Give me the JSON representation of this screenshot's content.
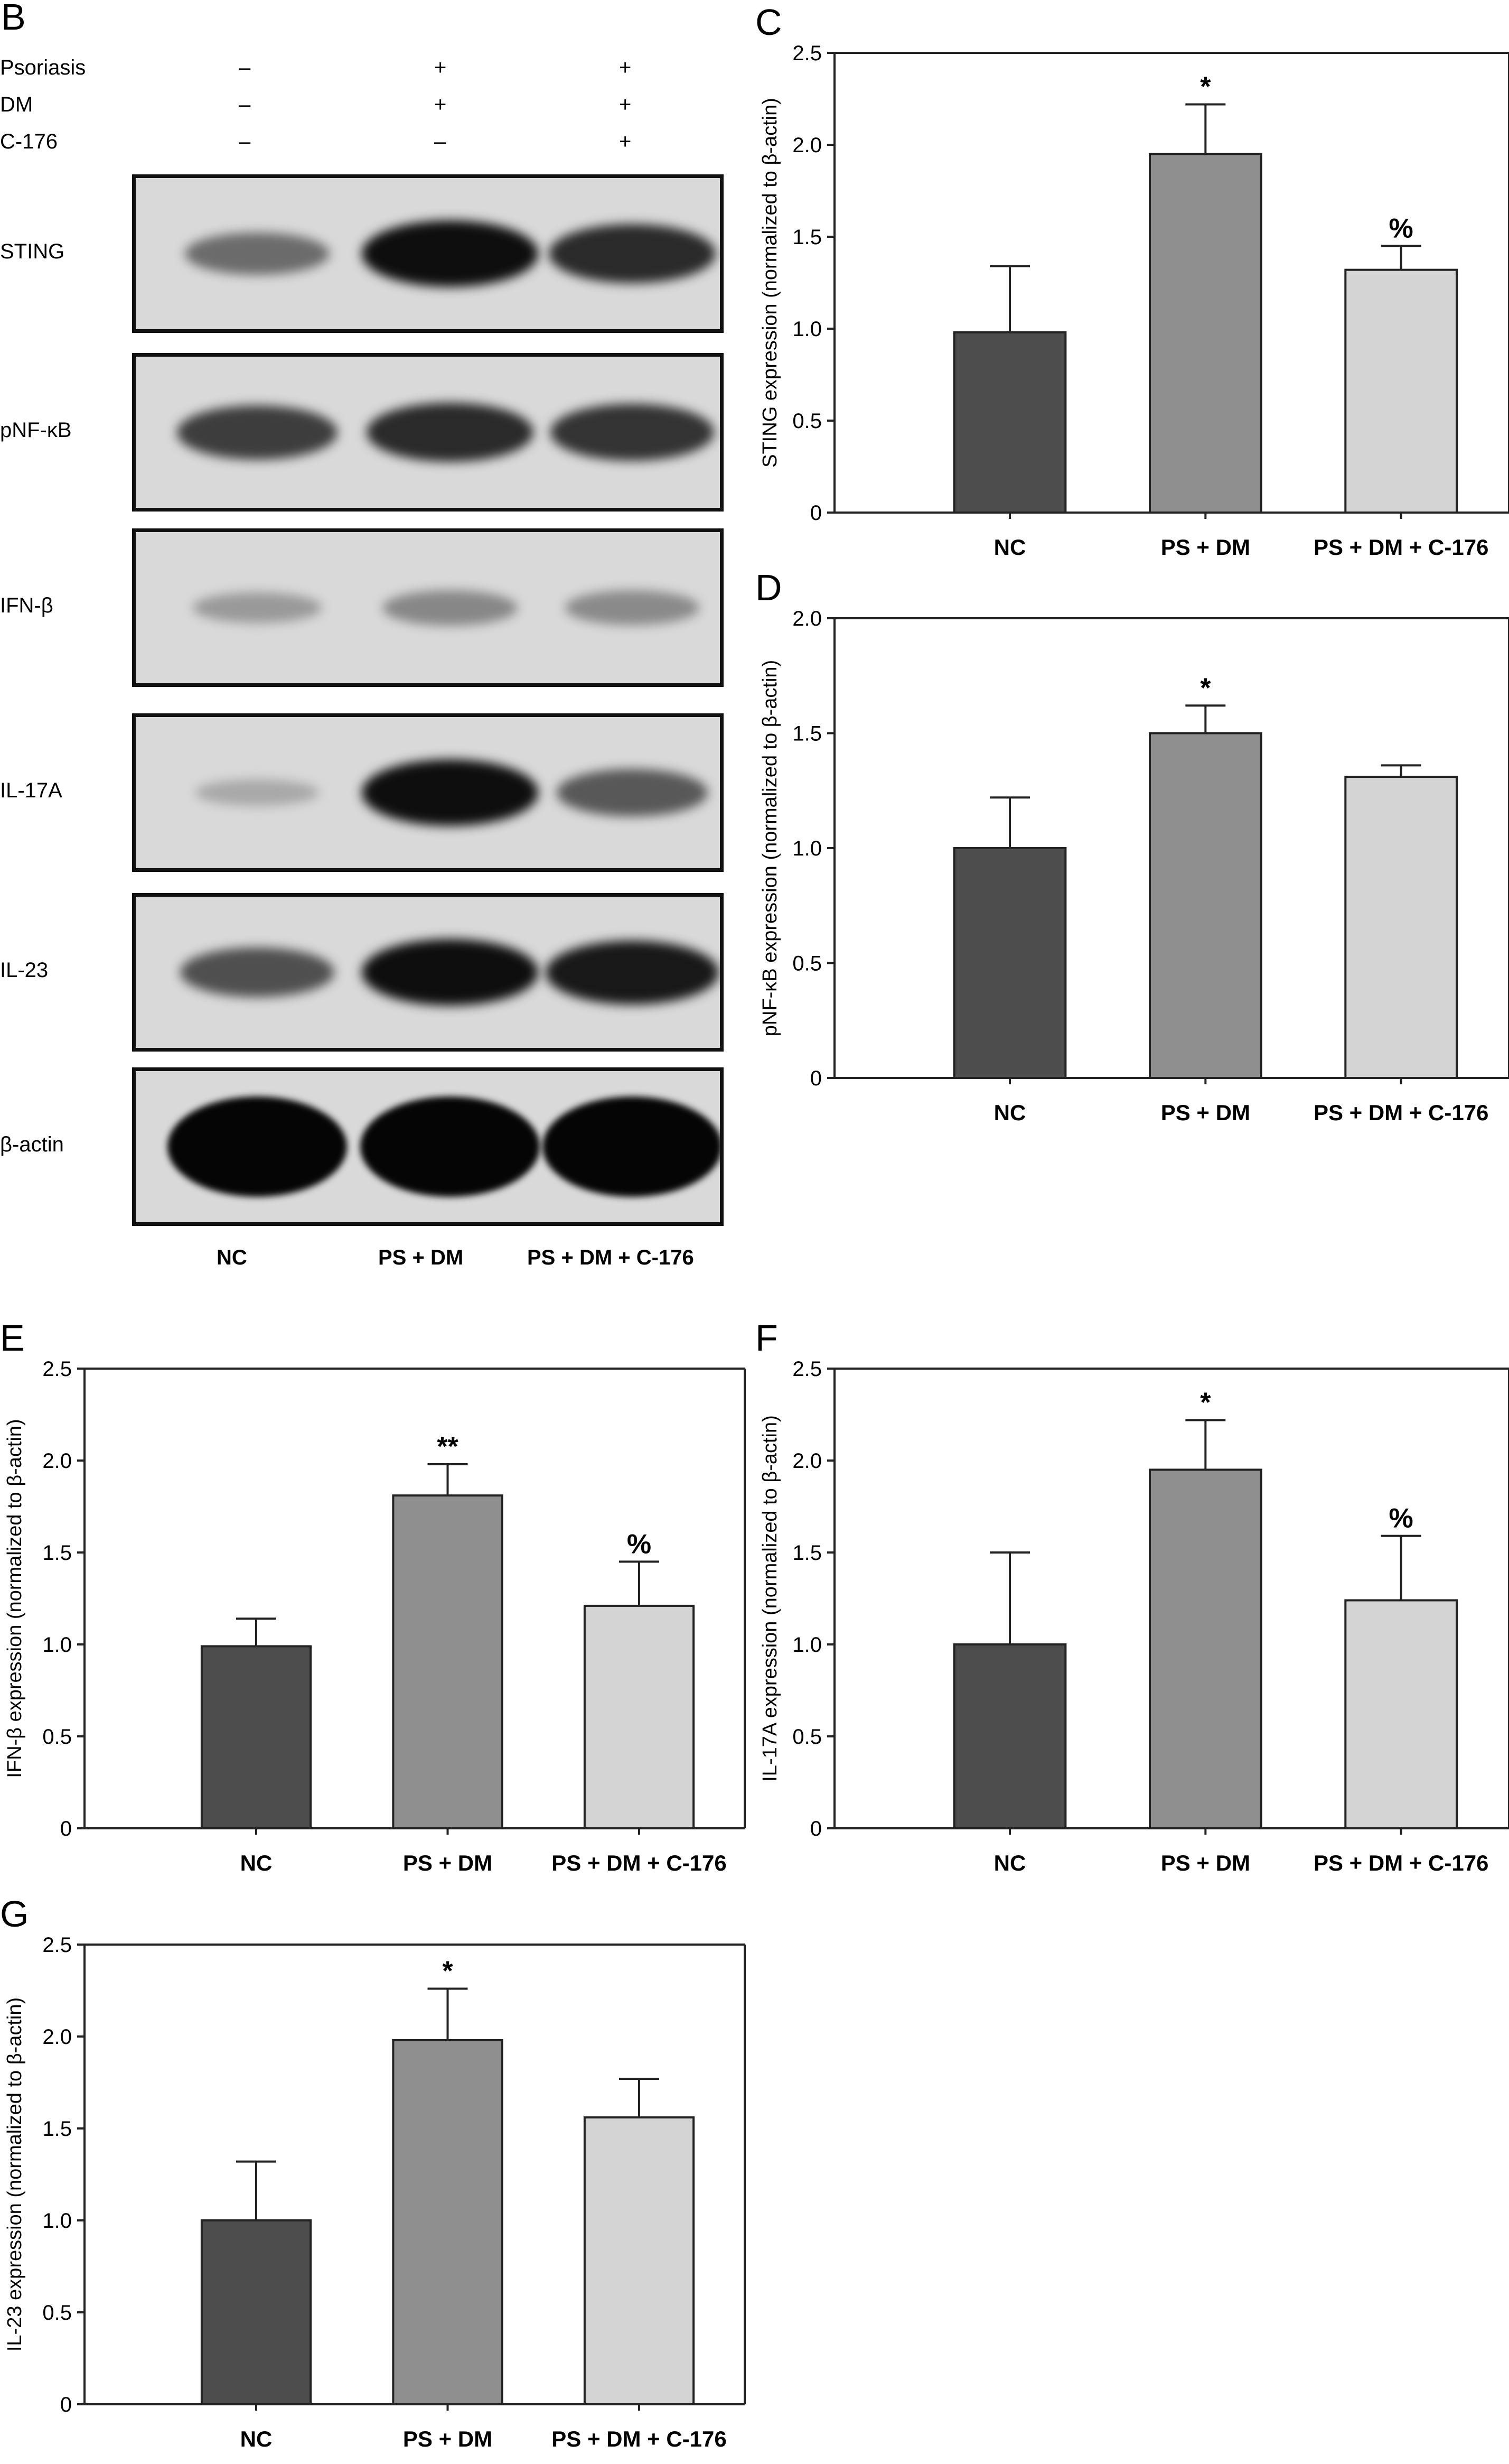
{
  "blot": {
    "letter": "B",
    "conditions": [
      {
        "name": "Psoriasis",
        "marks": [
          "–",
          "+",
          "+"
        ]
      },
      {
        "name": "DM",
        "marks": [
          "–",
          "+",
          "+"
        ]
      },
      {
        "name": "C-176",
        "marks": [
          "–",
          "–",
          "+"
        ]
      }
    ],
    "proteins": [
      "STING",
      "pNF-κB",
      "IFN-β",
      "IL-17A",
      "IL-23",
      "β-actin"
    ],
    "lanes": [
      "NC",
      "PS + DM",
      "PS + DM + C-176"
    ],
    "band_intensity": [
      [
        0.45,
        0.95,
        0.8
      ],
      [
        0.7,
        0.8,
        0.75
      ],
      [
        0.2,
        0.3,
        0.28
      ],
      [
        0.12,
        0.95,
        0.55
      ],
      [
        0.6,
        0.95,
        0.9
      ],
      [
        1.0,
        1.0,
        1.0
      ]
    ]
  },
  "colors": {
    "nc": "#4d4d4d",
    "ps_dm": "#8f8f8f",
    "ps_dm_c176": "#d4d4d4"
  },
  "chart_data": [
    {
      "letter": "C",
      "type": "bar",
      "categories": [
        "NC",
        "PS + DM",
        "PS + DM + C-176"
      ],
      "values": [
        0.98,
        1.95,
        1.32
      ],
      "errors": [
        0.36,
        0.27,
        0.13
      ],
      "annotations": [
        "",
        "*",
        "%"
      ],
      "ylabel": "STING expression (normalized to β-actin)",
      "ylim": [
        0,
        2.5
      ],
      "yticks": [
        "0",
        "0.5",
        "1.0",
        "1.5",
        "2.0",
        "2.5"
      ]
    },
    {
      "letter": "D",
      "type": "bar",
      "categories": [
        "NC",
        "PS + DM",
        "PS + DM + C-176"
      ],
      "values": [
        1.0,
        1.5,
        1.31
      ],
      "errors": [
        0.22,
        0.12,
        0.05
      ],
      "annotations": [
        "",
        "*",
        ""
      ],
      "ylabel": "pNF-κB expression (normalized to β-actin)",
      "ylim": [
        0,
        2.0
      ],
      "yticks": [
        "0",
        "0.5",
        "1.0",
        "1.5",
        "2.0"
      ]
    },
    {
      "letter": "E",
      "type": "bar",
      "categories": [
        "NC",
        "PS + DM",
        "PS + DM + C-176"
      ],
      "values": [
        0.99,
        1.81,
        1.21
      ],
      "errors": [
        0.15,
        0.17,
        0.24
      ],
      "annotations": [
        "",
        "**",
        "%"
      ],
      "ylabel": "IFN-β expression (normalized to β-actin)",
      "ylim": [
        0,
        2.5
      ],
      "yticks": [
        "0",
        "0.5",
        "1.0",
        "1.5",
        "2.0",
        "2.5"
      ]
    },
    {
      "letter": "F",
      "type": "bar",
      "categories": [
        "NC",
        "PS + DM",
        "PS + DM + C-176"
      ],
      "values": [
        1.0,
        1.95,
        1.24
      ],
      "errors": [
        0.5,
        0.27,
        0.35
      ],
      "annotations": [
        "",
        "*",
        "%"
      ],
      "ylabel": "IL-17A expression (normalized to β-actin)",
      "ylim": [
        0,
        2.5
      ],
      "yticks": [
        "0",
        "0.5",
        "1.0",
        "1.5",
        "2.0",
        "2.5"
      ]
    },
    {
      "letter": "G",
      "type": "bar",
      "categories": [
        "NC",
        "PS + DM",
        "PS + DM + C-176"
      ],
      "values": [
        1.0,
        1.98,
        1.56
      ],
      "errors": [
        0.32,
        0.28,
        0.21
      ],
      "annotations": [
        "",
        "*",
        ""
      ],
      "ylabel": "IL-23 expression (normalized to β-actin)",
      "ylim": [
        0,
        2.5
      ],
      "yticks": [
        "0",
        "0.5",
        "1.0",
        "1.5",
        "2.0",
        "2.5"
      ]
    }
  ]
}
